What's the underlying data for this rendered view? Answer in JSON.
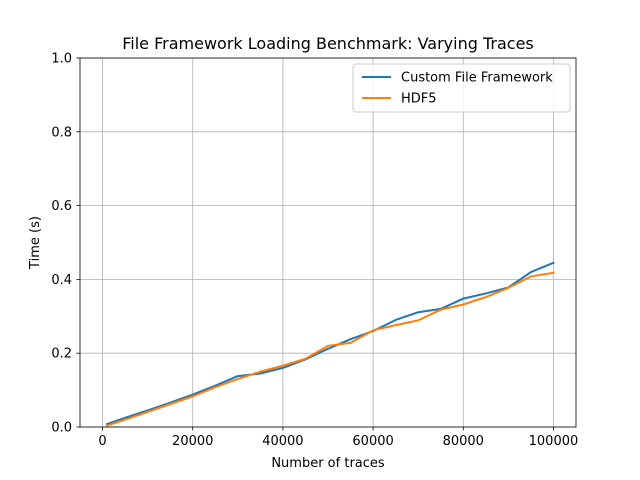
{
  "chart_data": {
    "type": "line",
    "title": "File Framework Loading Benchmark: Varying Traces",
    "xlabel": "Number of traces",
    "ylabel": "Time (s)",
    "xlim": [
      -5000,
      105000
    ],
    "ylim": [
      0.0,
      1.0
    ],
    "xticks": [
      0,
      20000,
      40000,
      60000,
      80000,
      100000
    ],
    "xtick_labels": [
      "0",
      "20000",
      "40000",
      "60000",
      "80000",
      "100000"
    ],
    "yticks": [
      0.0,
      0.2,
      0.4,
      0.6,
      0.8,
      1.0
    ],
    "ytick_labels": [
      "0.0",
      "0.2",
      "0.4",
      "0.6",
      "0.8",
      "1.0"
    ],
    "grid": true,
    "legend_position": "top-right",
    "x": [
      1000,
      5000,
      10000,
      15000,
      20000,
      25000,
      30000,
      35000,
      40000,
      45000,
      50000,
      55000,
      60000,
      65000,
      70000,
      75000,
      80000,
      85000,
      90000,
      95000,
      100000
    ],
    "series": [
      {
        "name": "Custom File Framework",
        "color": "#1f77b4",
        "values": [
          0.008,
          0.025,
          0.045,
          0.066,
          0.088,
          0.112,
          0.138,
          0.145,
          0.16,
          0.183,
          0.212,
          0.238,
          0.26,
          0.29,
          0.311,
          0.32,
          0.348,
          0.362,
          0.378,
          0.42,
          0.445
        ]
      },
      {
        "name": "HDF5",
        "color": "#ff7f0e",
        "values": [
          0.004,
          0.02,
          0.041,
          0.062,
          0.083,
          0.108,
          0.13,
          0.15,
          0.166,
          0.185,
          0.22,
          0.228,
          0.262,
          0.276,
          0.289,
          0.318,
          0.332,
          0.352,
          0.377,
          0.408,
          0.418
        ]
      }
    ]
  }
}
